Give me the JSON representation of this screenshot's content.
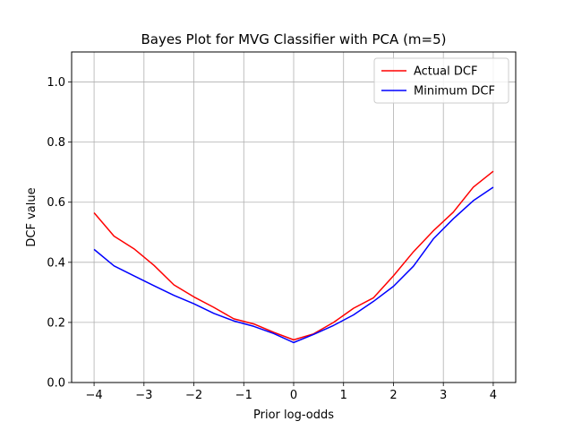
{
  "chart_data": {
    "type": "line",
    "title": "Bayes Plot for MVG Classifier with PCA (m=5)",
    "xlabel": "Prior log-odds",
    "ylabel": "DCF value",
    "xlim": [
      -4.45,
      4.45
    ],
    "ylim": [
      0.0,
      1.1
    ],
    "xticks": [
      -4,
      -3,
      -2,
      -1,
      0,
      1,
      2,
      3,
      4
    ],
    "xtick_labels": [
      "−4",
      "−3",
      "−2",
      "−1",
      "0",
      "1",
      "2",
      "3",
      "4"
    ],
    "yticks": [
      0.0,
      0.2,
      0.4,
      0.6,
      0.8,
      1.0
    ],
    "ytick_labels": [
      "0.0",
      "0.2",
      "0.4",
      "0.6",
      "0.8",
      "1.0"
    ],
    "grid": true,
    "legend_position": "top-right",
    "x": [
      -4.0,
      -3.6,
      -3.2,
      -2.8,
      -2.4,
      -2.0,
      -1.6,
      -1.2,
      -0.8,
      -0.4,
      0.0,
      0.4,
      0.8,
      1.2,
      1.6,
      2.0,
      2.4,
      2.8,
      3.2,
      3.6,
      4.0
    ],
    "series": [
      {
        "name": "Actual DCF",
        "color": "#ff0000",
        "values": [
          0.565,
          0.487,
          0.445,
          0.39,
          0.325,
          0.285,
          0.25,
          0.212,
          0.195,
          0.167,
          0.142,
          0.162,
          0.2,
          0.247,
          0.282,
          0.355,
          0.435,
          0.505,
          0.567,
          0.65,
          0.703
        ]
      },
      {
        "name": "Minimum DCF",
        "color": "#0000ff",
        "values": [
          0.443,
          0.388,
          0.355,
          0.322,
          0.29,
          0.262,
          0.23,
          0.205,
          0.187,
          0.163,
          0.133,
          0.16,
          0.19,
          0.225,
          0.27,
          0.32,
          0.387,
          0.478,
          0.545,
          0.605,
          0.65
        ]
      }
    ]
  }
}
